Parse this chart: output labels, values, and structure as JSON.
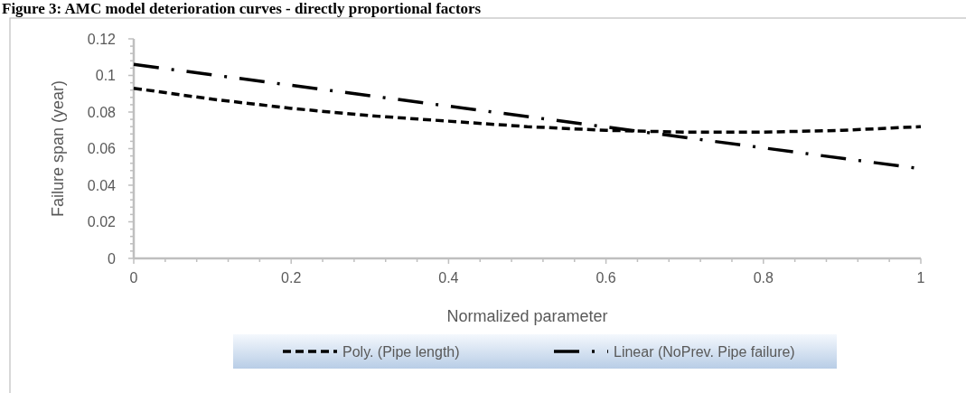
{
  "chart_data": {
    "type": "line",
    "title": "Figure 3: AMC model deterioration curves - directly proportional factors",
    "xlabel": "Normalized parameter",
    "ylabel": "Failure span (year)",
    "xlim": [
      0,
      1
    ],
    "ylim": [
      0,
      0.12
    ],
    "xticks": [
      0,
      {
        "value": 0.04,
        "label": null
      },
      {
        "value": 0.08,
        "label": null
      },
      {
        "value": 0.12,
        "label": null
      },
      {
        "value": 0.16,
        "label": null
      },
      0.2,
      {
        "value": 0.24,
        "label": null
      },
      {
        "value": 0.28,
        "label": null
      },
      {
        "value": 0.32,
        "label": null
      },
      {
        "value": 0.36,
        "label": null
      },
      0.4,
      {
        "value": 0.44,
        "label": null
      },
      {
        "value": 0.48,
        "label": null
      },
      {
        "value": 0.52,
        "label": null
      },
      {
        "value": 0.56,
        "label": null
      },
      0.6,
      {
        "value": 0.64,
        "label": null
      },
      {
        "value": 0.68,
        "label": null
      },
      {
        "value": 0.72,
        "label": null
      },
      {
        "value": 0.76,
        "label": null
      },
      0.8,
      {
        "value": 0.84,
        "label": null
      },
      {
        "value": 0.88,
        "label": null
      },
      {
        "value": 0.92,
        "label": null
      },
      {
        "value": 0.96,
        "label": null
      },
      1
    ],
    "yticks": [
      0,
      {
        "value": 0.004,
        "label": null
      },
      {
        "value": 0.008,
        "label": null
      },
      {
        "value": 0.012,
        "label": null
      },
      {
        "value": 0.016,
        "label": null
      },
      0.02,
      {
        "value": 0.024,
        "label": null
      },
      {
        "value": 0.028,
        "label": null
      },
      {
        "value": 0.032,
        "label": null
      },
      {
        "value": 0.036,
        "label": null
      },
      0.04,
      {
        "value": 0.044,
        "label": null
      },
      {
        "value": 0.048,
        "label": null
      },
      {
        "value": 0.052,
        "label": null
      },
      {
        "value": 0.056,
        "label": null
      },
      0.06,
      {
        "value": 0.064,
        "label": null
      },
      {
        "value": 0.068,
        "label": null
      },
      {
        "value": 0.072,
        "label": null
      },
      {
        "value": 0.076,
        "label": null
      },
      0.08,
      {
        "value": 0.084,
        "label": null
      },
      {
        "value": 0.088,
        "label": null
      },
      {
        "value": 0.092,
        "label": null
      },
      {
        "value": 0.096,
        "label": null
      },
      0.1,
      {
        "value": 0.104,
        "label": null
      },
      {
        "value": 0.108,
        "label": null
      },
      {
        "value": 0.112,
        "label": null
      },
      {
        "value": 0.116,
        "label": null
      },
      0.12
    ],
    "grid": false,
    "legend": "bottom",
    "series": [
      {
        "name": "Poly. (Pipe length)",
        "color": "#000000",
        "line_style": "dashed",
        "x": [
          0,
          0.1,
          0.2,
          0.3,
          0.4,
          0.5,
          0.6,
          0.7,
          0.8,
          0.9,
          1
        ],
        "values": [
          0.093,
          0.087,
          0.082,
          0.078,
          0.075,
          0.072,
          0.07,
          0.069,
          0.069,
          0.07,
          0.072
        ]
      },
      {
        "name": "Linear (NoPrev. Pipe failure)",
        "color": "#000000",
        "line_style": "dashdot",
        "x": [
          0,
          1
        ],
        "values": [
          0.106,
          0.049
        ]
      }
    ]
  }
}
